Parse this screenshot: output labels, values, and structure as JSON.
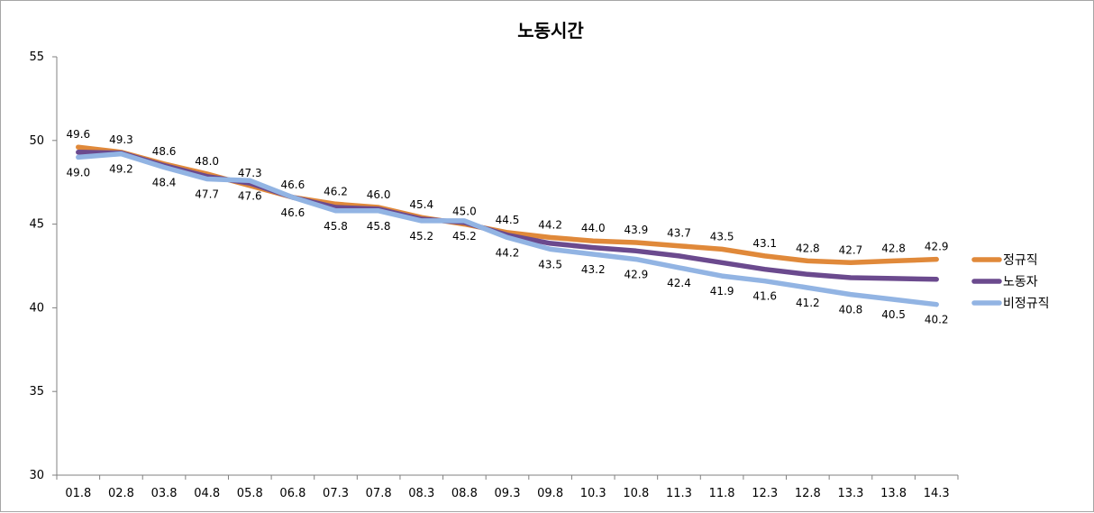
{
  "chart_data": {
    "type": "line",
    "title": "노동시간",
    "xlabel": "",
    "ylabel": "",
    "ylim": [
      30,
      55
    ],
    "yticks": [
      30,
      35,
      40,
      45,
      50,
      55
    ],
    "grid": false,
    "legend_position": "right",
    "categories": [
      "01.8",
      "02.8",
      "03.8",
      "04.8",
      "05.8",
      "06.8",
      "07.3",
      "07.8",
      "08.3",
      "08.8",
      "09.3",
      "09.8",
      "10.3",
      "10.8",
      "11.3",
      "11.8",
      "12.3",
      "12.8",
      "13.3",
      "13.8",
      "14.3"
    ],
    "series": [
      {
        "name": "정규직",
        "color": "#e0893a",
        "values": [
          49.6,
          49.3,
          48.6,
          48.0,
          47.3,
          46.6,
          46.2,
          46.0,
          45.4,
          45.0,
          44.5,
          44.2,
          44.0,
          43.9,
          43.7,
          43.5,
          43.1,
          42.8,
          42.7,
          42.8,
          42.9
        ],
        "labels_position": "above"
      },
      {
        "name": "노동자",
        "color": "#6b4a8e",
        "values": [
          49.3,
          49.25,
          48.5,
          47.85,
          47.45,
          46.6,
          46.0,
          45.9,
          45.3,
          45.1,
          44.35,
          43.85,
          43.6,
          43.4,
          43.1,
          42.7,
          42.3,
          42.0,
          41.8,
          41.75,
          41.7
        ],
        "labels_position": "none"
      },
      {
        "name": "비정규직",
        "color": "#92b4e3",
        "values": [
          49.0,
          49.2,
          48.4,
          47.7,
          47.6,
          46.6,
          45.8,
          45.8,
          45.2,
          45.2,
          44.2,
          43.5,
          43.2,
          42.9,
          42.4,
          41.9,
          41.6,
          41.2,
          40.8,
          40.5,
          40.2
        ],
        "labels_position": "below"
      }
    ]
  }
}
